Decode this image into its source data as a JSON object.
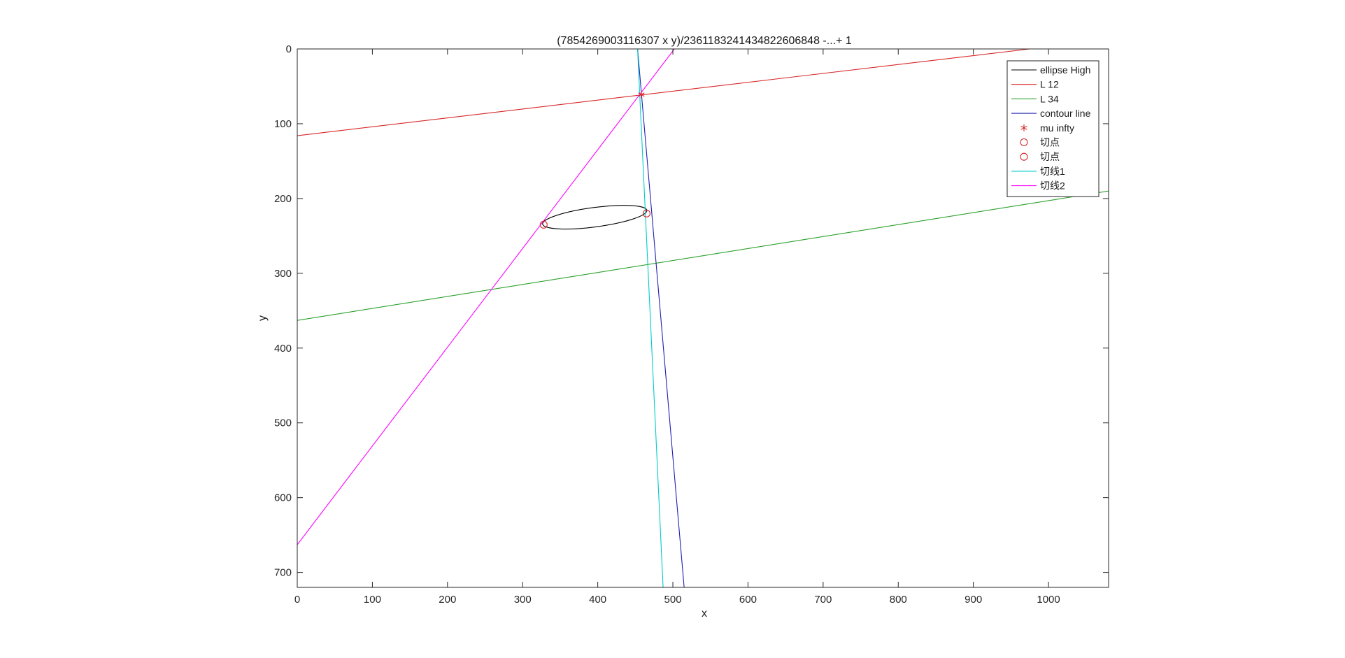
{
  "chart_data": {
    "type": "line",
    "title": "(7854269003116307 x y)/236118324143482260684​8 -...+ 1",
    "xlabel": "x",
    "ylabel": "y",
    "xlim": [
      0,
      1080
    ],
    "ylim": [
      0,
      720
    ],
    "y_reversed": true,
    "grid": false,
    "legend_position": "top-right",
    "x_ticks": [
      0,
      100,
      200,
      300,
      400,
      500,
      600,
      700,
      800,
      900,
      1000
    ],
    "y_ticks": [
      0,
      100,
      200,
      300,
      400,
      500,
      600,
      700
    ],
    "series": [
      {
        "name": "ellipse High",
        "color": "#000000",
        "kind": "ellipse",
        "center": [
          396,
          225
        ],
        "semi_axes": [
          70,
          13
        ],
        "angle_deg": -7.5
      },
      {
        "name": "L 12",
        "color": "#d62728",
        "kind": "line",
        "x": [
          0,
          975
        ],
        "y": [
          116,
          0
        ]
      },
      {
        "name": "L 34",
        "color": "#2ca02c",
        "kind": "line",
        "x": [
          0,
          1080
        ],
        "y": [
          363,
          190
        ]
      },
      {
        "name": "contour line",
        "color": "#1f1fb4",
        "kind": "line",
        "x": [
          453,
          515
        ],
        "y": [
          0,
          720
        ]
      },
      {
        "name": "mu infty",
        "color": "#d62728",
        "kind": "marker",
        "marker": "*",
        "x": [
          458
        ],
        "y": [
          61
        ]
      },
      {
        "name": "切点",
        "color": "#d62728",
        "kind": "marker",
        "marker": "o",
        "x": [
          328
        ],
        "y": [
          235
        ]
      },
      {
        "name": "切点",
        "color": "#d62728",
        "kind": "marker",
        "marker": "o",
        "x": [
          465
        ],
        "y": [
          220
        ]
      },
      {
        "name": "切线1",
        "color": "#00cccc",
        "kind": "line",
        "x": [
          453,
          487
        ],
        "y": [
          0,
          720
        ]
      },
      {
        "name": "切线2",
        "color": "#ff00ff",
        "kind": "line",
        "x": [
          0,
          502
        ],
        "y": [
          663,
          0
        ]
      }
    ]
  }
}
